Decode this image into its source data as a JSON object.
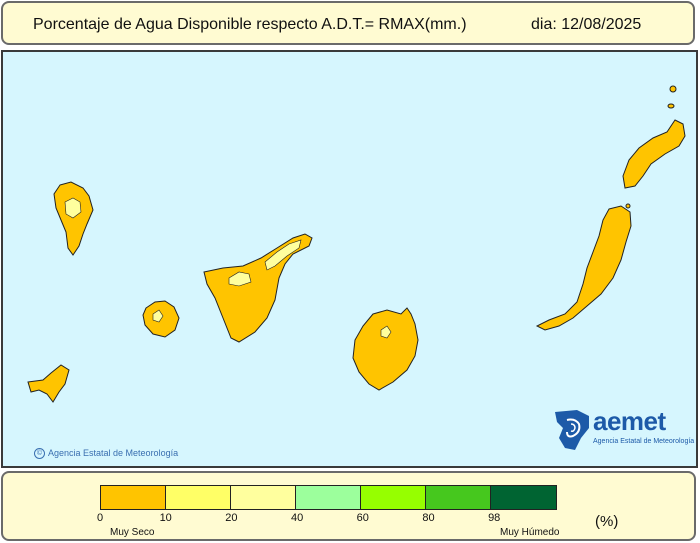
{
  "header": {
    "title": "Porcentaje de Agua Disponible respecto A.D.T.= RMAX(mm.)",
    "date": "dia: 12/08/2025"
  },
  "map": {
    "sea_color": "#d6f6fe",
    "islands": [
      {
        "name": "La Palma",
        "class": "0-10"
      },
      {
        "name": "El Hierro",
        "class": "0-10"
      },
      {
        "name": "La Gomera",
        "class": "0-10"
      },
      {
        "name": "Tenerife",
        "class": "0-10"
      },
      {
        "name": "Gran Canaria",
        "class": "0-10"
      },
      {
        "name": "Fuerteventura",
        "class": "0-10"
      },
      {
        "name": "Lanzarote",
        "class": "0-10"
      }
    ],
    "copyright": "Agencia Estatal de Meteorología",
    "logo": {
      "name": "aemet",
      "subtitle": "Agencia Estatal de Meteorología"
    }
  },
  "legend": {
    "colors": [
      "#ffc400",
      "#ffff66",
      "#ffff9e",
      "#9cff9c",
      "#96ff00",
      "#46c81e",
      "#006432"
    ],
    "ticks": [
      "0",
      "10",
      "20",
      "40",
      "60",
      "80",
      "98"
    ],
    "low_label": "Muy Seco",
    "high_label": "Muy Húmedo",
    "units": "(%)"
  }
}
